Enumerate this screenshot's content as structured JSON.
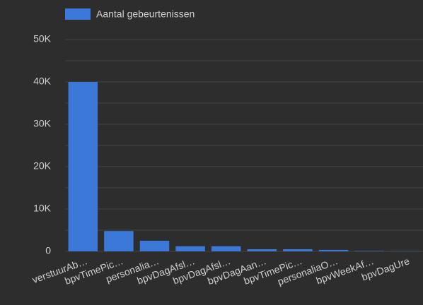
{
  "chart_data": {
    "type": "bar",
    "legend": "Aantal gebeurtenissen",
    "color": "#3b78d8",
    "categories": [
      "verstuurAb…",
      "bpvTimePic…",
      "personalia…",
      "bpvDagAfsl…",
      "bpvDagAfsl…",
      "bpvDagAan…",
      "bpvTimePic…",
      "personaliaO…",
      "bpvWeekAf…",
      "bpvDagUre"
    ],
    "values": [
      40000,
      4800,
      2500,
      1200,
      1200,
      500,
      500,
      350,
      100,
      50
    ],
    "ylim": [
      0,
      50000
    ],
    "yticks": [
      {
        "value": 0,
        "label": "0"
      },
      {
        "value": 10000,
        "label": "10K"
      },
      {
        "value": 20000,
        "label": "20K"
      },
      {
        "value": 30000,
        "label": "30K"
      },
      {
        "value": 40000,
        "label": "40K"
      },
      {
        "value": 50000,
        "label": "50K"
      }
    ],
    "minor_gridlines": [
      5000,
      15000,
      25000,
      35000,
      45000
    ],
    "grid": true
  }
}
